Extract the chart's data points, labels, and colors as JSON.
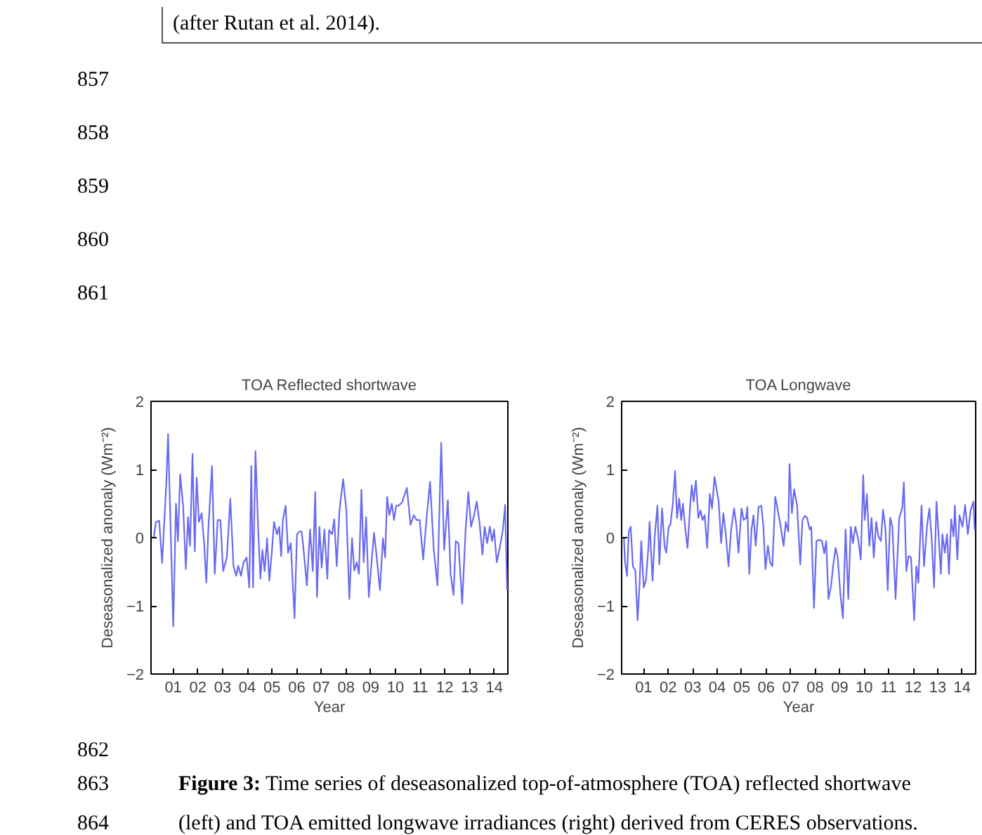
{
  "chart_data": [
    {
      "type": "line",
      "title": "TOA Reflected shortwave",
      "xlabel": "Year",
      "ylabel": "Deseasonalized anonaly (Wm⁻²)",
      "color": "#6a6af2",
      "grid": false,
      "xlim": [
        2000.1,
        2014.55
      ],
      "ylim": [
        -2,
        2
      ],
      "yticks": [
        -2,
        -1,
        0,
        1,
        2
      ],
      "xticks": [
        {
          "value": 2001,
          "label": "01"
        },
        {
          "value": 2002,
          "label": "02"
        },
        {
          "value": 2003,
          "label": "03"
        },
        {
          "value": 2004,
          "label": "04"
        },
        {
          "value": 2005,
          "label": "05"
        },
        {
          "value": 2006,
          "label": "06"
        },
        {
          "value": 2007,
          "label": "07"
        },
        {
          "value": 2008,
          "label": "08"
        },
        {
          "value": 2009,
          "label": "09"
        },
        {
          "value": 2010,
          "label": "10"
        },
        {
          "value": 2011,
          "label": "11"
        },
        {
          "value": 2012,
          "label": "12"
        },
        {
          "value": 2013,
          "label": "13"
        },
        {
          "value": 2014,
          "label": "14"
        }
      ],
      "x": [
        2000.21,
        2000.3,
        2000.43,
        2000.55,
        2000.72,
        2000.79,
        2001.0,
        2001.11,
        2001.19,
        2001.28,
        2001.4,
        2001.51,
        2001.6,
        2001.68,
        2001.78,
        2001.87,
        2001.95,
        2002.04,
        2002.15,
        2002.25,
        2002.34,
        2002.42,
        2002.57,
        2002.68,
        2002.8,
        2002.91,
        2003.02,
        2003.17,
        2003.31,
        2003.44,
        2003.55,
        2003.63,
        2003.74,
        2003.85,
        2003.97,
        2004.08,
        2004.16,
        2004.23,
        2004.33,
        2004.44,
        2004.53,
        2004.61,
        2004.7,
        2004.8,
        2004.89,
        2004.99,
        2005.08,
        2005.2,
        2005.29,
        2005.37,
        2005.44,
        2005.55,
        2005.65,
        2005.76,
        2005.91,
        2006.01,
        2006.1,
        2006.2,
        2006.29,
        2006.41,
        2006.54,
        2006.65,
        2006.75,
        2006.82,
        2006.92,
        2007.01,
        2007.12,
        2007.24,
        2007.31,
        2007.43,
        2007.52,
        2007.62,
        2007.73,
        2007.88,
        2008.01,
        2008.13,
        2008.24,
        2008.33,
        2008.43,
        2008.52,
        2008.62,
        2008.71,
        2008.81,
        2008.92,
        2009.03,
        2009.13,
        2009.22,
        2009.37,
        2009.49,
        2009.58,
        2009.66,
        2009.75,
        2009.85,
        2009.94,
        2010.03,
        2010.13,
        2010.27,
        2010.46,
        2010.61,
        2010.74,
        2010.85,
        2010.98,
        2011.12,
        2011.27,
        2011.4,
        2011.55,
        2011.7,
        2011.85,
        2011.97,
        2012.12,
        2012.23,
        2012.35,
        2012.44,
        2012.55,
        2012.7,
        2012.84,
        2012.95,
        2013.06,
        2013.18,
        2013.29,
        2013.4,
        2013.52,
        2013.61,
        2013.71,
        2013.82,
        2013.91,
        2013.99,
        2014.1,
        2014.22,
        2014.35,
        2014.44,
        2014.52
      ],
      "values": [
        0,
        0.23,
        0.25,
        -0.37,
        0.8,
        1.52,
        -1.3,
        0.5,
        -0.05,
        0.93,
        0.47,
        -0.46,
        0.3,
        -0.12,
        1.23,
        -0.2,
        0.88,
        0.23,
        0.36,
        -0.08,
        -0.66,
        0.12,
        1.05,
        -0.53,
        0.26,
        0.26,
        -0.49,
        -0.29,
        0.57,
        -0.42,
        -0.56,
        -0.41,
        -0.56,
        -0.36,
        -0.29,
        -0.73,
        1.05,
        -0.73,
        1.27,
        0.12,
        -0.6,
        -0.18,
        -0.49,
        -0.01,
        -0.63,
        -0.22,
        0.23,
        0.05,
        0.16,
        -0.27,
        0.26,
        0.47,
        -0.22,
        -0.08,
        -1.18,
        0.05,
        0.09,
        0.09,
        -0.22,
        -0.7,
        0.12,
        -0.49,
        0.67,
        -0.87,
        0.16,
        -0.44,
        0.12,
        -0.6,
        0.11,
        0.05,
        0.27,
        -0.42,
        0.4,
        0.86,
        0.4,
        -0.9,
        -0.01,
        -0.48,
        -0.36,
        -0.53,
        0.7,
        -0.36,
        0.3,
        -0.87,
        -0.36,
        0.07,
        -0.22,
        -0.77,
        -0.01,
        -0.29,
        0.6,
        0.33,
        0.5,
        0.26,
        0.47,
        0.47,
        0.52,
        0.73,
        0.19,
        0.33,
        0.26,
        0.26,
        -0.32,
        0.33,
        0.82,
        -0.18,
        -0.7,
        1.39,
        -0.18,
        0.55,
        -0.53,
        -0.84,
        -0.05,
        -0.08,
        -0.97,
        0.12,
        0.67,
        0.16,
        0.33,
        0.53,
        0.23,
        -0.25,
        0.16,
        -0.08,
        0.16,
        -0.05,
        0.12,
        -0.36,
        -0.15,
        0.12,
        0.48,
        -0.77
      ],
      "annotations": [
        "(after Rutan et al. 2014).",
        "857",
        "858",
        "859",
        "860",
        "861",
        "862",
        "863",
        "Figure 3: Time series of deseasonalized top-of-atmosphere (TOA) reflected shortwave",
        "864",
        "(left) and TOA emitted longwave irradiances (right) derived from CERES observations."
      ]
    },
    {
      "type": "line",
      "title": "TOA Longwave",
      "xlabel": "Year",
      "ylabel": "Deseasonalized anonaly (Wm⁻²)",
      "color": "#6a6af2",
      "grid": false,
      "xlim": [
        2000.1,
        2014.55
      ],
      "ylim": [
        -2,
        2
      ],
      "yticks": [
        -2,
        -1,
        0,
        1,
        2
      ],
      "xticks": [
        {
          "value": 2001,
          "label": "01"
        },
        {
          "value": 2002,
          "label": "02"
        },
        {
          "value": 2003,
          "label": "03"
        },
        {
          "value": 2004,
          "label": "04"
        },
        {
          "value": 2005,
          "label": "05"
        },
        {
          "value": 2006,
          "label": "06"
        },
        {
          "value": 2007,
          "label": "07"
        },
        {
          "value": 2008,
          "label": "08"
        },
        {
          "value": 2009,
          "label": "09"
        },
        {
          "value": 2010,
          "label": "10"
        },
        {
          "value": 2011,
          "label": "11"
        },
        {
          "value": 2012,
          "label": "12"
        },
        {
          "value": 2013,
          "label": "13"
        },
        {
          "value": 2014,
          "label": "14"
        }
      ],
      "x": [
        2000.19,
        2000.24,
        2000.32,
        2000.39,
        2000.47,
        2000.56,
        2000.66,
        2000.75,
        2000.83,
        2000.9,
        2001.0,
        2001.09,
        2001.19,
        2001.24,
        2001.36,
        2001.45,
        2001.56,
        2001.64,
        2001.75,
        2001.85,
        2001.92,
        2002.02,
        2002.09,
        2002.19,
        2002.28,
        2002.36,
        2002.45,
        2002.53,
        2002.6,
        2002.7,
        2002.79,
        2002.89,
        2002.96,
        2003.04,
        2003.13,
        2003.23,
        2003.32,
        2003.4,
        2003.49,
        2003.59,
        2003.7,
        2003.79,
        2003.89,
        2004.06,
        2004.16,
        2004.25,
        2004.35,
        2004.46,
        2004.57,
        2004.69,
        2004.78,
        2004.87,
        2004.99,
        2005.08,
        2005.18,
        2005.23,
        2005.31,
        2005.4,
        2005.48,
        2005.57,
        2005.69,
        2005.8,
        2005.88,
        2005.97,
        2006.07,
        2006.16,
        2006.25,
        2006.37,
        2006.46,
        2006.58,
        2006.71,
        2006.8,
        2006.9,
        2006.95,
        2007.05,
        2007.14,
        2007.26,
        2007.39,
        2007.48,
        2007.58,
        2007.67,
        2007.77,
        2007.84,
        2007.95,
        2008.05,
        2008.16,
        2008.28,
        2008.37,
        2008.45,
        2008.54,
        2008.65,
        2008.73,
        2008.83,
        2008.92,
        2009.03,
        2009.13,
        2009.24,
        2009.35,
        2009.45,
        2009.54,
        2009.64,
        2009.75,
        2009.86,
        2009.96,
        2010.02,
        2010.11,
        2010.21,
        2010.3,
        2010.39,
        2010.49,
        2010.58,
        2010.68,
        2010.77,
        2010.87,
        2010.96,
        2011.06,
        2011.15,
        2011.28,
        2011.43,
        2011.55,
        2011.62,
        2011.72,
        2011.81,
        2011.91,
        2012.04,
        2012.13,
        2012.21,
        2012.34,
        2012.44,
        2012.57,
        2012.66,
        2012.76,
        2012.85,
        2012.95,
        2013.04,
        2013.13,
        2013.19,
        2013.29,
        2013.38,
        2013.46,
        2013.55,
        2013.65,
        2013.7,
        2013.8,
        2013.89,
        2014.01,
        2014.12,
        2014.23,
        2014.34,
        2014.46,
        2014.51
      ],
      "values": [
        0,
        -0.36,
        -0.56,
        0.09,
        0.16,
        -0.42,
        -0.48,
        -1.21,
        -0.7,
        -0.05,
        -0.73,
        -0.63,
        -0.15,
        0.23,
        -0.63,
        0.02,
        0.47,
        -0.39,
        0.43,
        -0.12,
        -0.22,
        0.16,
        0.19,
        0.5,
        0.98,
        0.29,
        0.57,
        0.26,
        0.5,
        0.12,
        -0.15,
        0.43,
        0.77,
        0.53,
        0.84,
        0.29,
        0.4,
        0.26,
        0.33,
        -0.15,
        0.64,
        0.43,
        0.89,
        0.53,
        -0.08,
        0.36,
        0.05,
        -0.42,
        0.12,
        0.43,
        0.19,
        -0.22,
        0.43,
        0.26,
        0.29,
        0.45,
        -0.53,
        0.12,
        0.33,
        -0.12,
        0.45,
        0.47,
        0.19,
        -0.46,
        -0.12,
        -0.36,
        -0.42,
        0.6,
        0.43,
        0.19,
        -0.12,
        0.23,
        0.09,
        1.08,
        0.36,
        0.71,
        0.47,
        -0.39,
        0.26,
        0.32,
        0.29,
        0.12,
        0.16,
        -1.03,
        -0.05,
        -0.03,
        -0.05,
        -0.23,
        -0.05,
        -0.9,
        -0.7,
        -0.42,
        -0.15,
        -0.29,
        -0.84,
        -1.18,
        0.12,
        -0.9,
        0.16,
        -0.08,
        0.16,
        -0.01,
        -0.32,
        0.92,
        0.26,
        0.64,
        -0.12,
        0.29,
        -0.29,
        0.23,
        0.02,
        -0.05,
        0.41,
        0.12,
        -0.77,
        0.29,
        0.16,
        -0.9,
        0.29,
        0.43,
        0.81,
        -0.49,
        -0.27,
        -0.29,
        -1.21,
        -0.42,
        -0.66,
        0.47,
        -0.42,
        0.19,
        0.43,
        -0.05,
        -0.73,
        0.53,
        0.02,
        -0.53,
        0.05,
        -0.22,
        0.05,
        -0.53,
        0.27,
        0.02,
        0.47,
        -0.32,
        0.33,
        0.16,
        0.48,
        0.05,
        0.4,
        0.53,
        0.12
      ]
    }
  ]
}
